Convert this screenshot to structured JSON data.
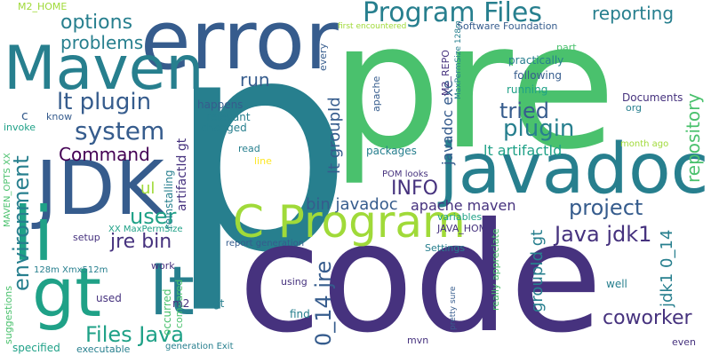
{
  "palette": {
    "background": "#ffffff",
    "colors": [
      "#46327e",
      "#365c8d",
      "#277f8e",
      "#1fa187",
      "#4ac16d",
      "#a0da39",
      "#fde725",
      "#440154"
    ]
  },
  "words": [
    {
      "text": "p",
      "color": "#277f8e"
    },
    {
      "text": "pre",
      "color": "#4ac16d"
    },
    {
      "text": "code",
      "color": "#46327e"
    },
    {
      "text": "error",
      "color": "#365c8d"
    },
    {
      "text": "Maven",
      "color": "#277f8e"
    },
    {
      "text": "JDK",
      "color": "#365c8d"
    },
    {
      "text": "javadoc",
      "color": "#277f8e"
    },
    {
      "text": "li",
      "color": "#1fa187"
    },
    {
      "text": "gt",
      "color": "#1fa187"
    },
    {
      "text": "lt",
      "color": "#277f8e"
    },
    {
      "text": "C Program",
      "color": "#a0da39"
    },
    {
      "text": "Program Files",
      "color": "#277f8e"
    },
    {
      "text": "reporting",
      "color": "#277f8e"
    },
    {
      "text": "options",
      "color": "#277f8e"
    },
    {
      "text": "problems",
      "color": "#277f8e"
    },
    {
      "text": "lt plugin",
      "color": "#365c8d"
    },
    {
      "text": "system",
      "color": "#365c8d"
    },
    {
      "text": "Command",
      "color": "#440154"
    },
    {
      "text": "run",
      "color": "#365c8d"
    },
    {
      "text": "tried",
      "color": "#365c8d"
    },
    {
      "text": "plugin",
      "color": "#277f8e"
    },
    {
      "text": "INFO",
      "color": "#46327e"
    },
    {
      "text": "project",
      "color": "#365c8d"
    },
    {
      "text": "user",
      "color": "#1fa187"
    },
    {
      "text": "jre bin",
      "color": "#46327e"
    },
    {
      "text": "Java jdk1",
      "color": "#46327e"
    },
    {
      "text": "coworker",
      "color": "#46327e"
    },
    {
      "text": "Files Java",
      "color": "#1fa187"
    },
    {
      "text": "environment",
      "color": "#277f8e"
    },
    {
      "text": "0_14 jre",
      "color": "#365c8d"
    },
    {
      "text": "jdk1 0_14",
      "color": "#277f8e"
    },
    {
      "text": "repository",
      "color": "#4ac16d"
    },
    {
      "text": "bin javadoc",
      "color": "#365c8d"
    },
    {
      "text": "apache maven",
      "color": "#46327e"
    },
    {
      "text": "lt groupId",
      "color": "#365c8d"
    },
    {
      "text": "javadoc exe",
      "color": "#365c8d"
    },
    {
      "text": "lt artifactId",
      "color": "#1fa187"
    },
    {
      "text": "groupId gt",
      "color": "#277f8e"
    },
    {
      "text": "artifactId gt",
      "color": "#46327e"
    },
    {
      "text": "ul",
      "color": "#a0da39"
    },
    {
      "text": "practically",
      "color": "#277f8e"
    },
    {
      "text": "following",
      "color": "#365c8d"
    },
    {
      "text": "running",
      "color": "#1fa187"
    },
    {
      "text": "Documents",
      "color": "#46327e"
    },
    {
      "text": "org",
      "color": "#277f8e"
    },
    {
      "text": "happens",
      "color": "#365c8d"
    },
    {
      "text": "relevant",
      "color": "#277f8e"
    },
    {
      "text": "changed",
      "color": "#277f8e"
    },
    {
      "text": "read",
      "color": "#277f8e"
    },
    {
      "text": "line",
      "color": "#fde725"
    },
    {
      "text": "reinstalling",
      "color": "#277f8e"
    },
    {
      "text": "packages",
      "color": "#277f8e"
    },
    {
      "text": "POM looks",
      "color": "#46327e"
    },
    {
      "text": "JAVA_HOME",
      "color": "#46327e"
    },
    {
      "text": "variables",
      "color": "#1fa187"
    },
    {
      "text": "Settings",
      "color": "#277f8e"
    },
    {
      "text": "report generation",
      "color": "#365c8d"
    },
    {
      "text": "XX MaxPermSize",
      "color": "#1fa187"
    },
    {
      "text": "setup",
      "color": "#46327e"
    },
    {
      "text": "work",
      "color": "#46327e"
    },
    {
      "text": "m2",
      "color": "#46327e"
    },
    {
      "text": "gt",
      "color": "#277f8e"
    },
    {
      "text": "used",
      "color": "#46327e"
    },
    {
      "text": "occurred",
      "color": "#4ac16d"
    },
    {
      "text": "compared",
      "color": "#4ac16d"
    },
    {
      "text": "using",
      "color": "#46327e"
    },
    {
      "text": "find",
      "color": "#277f8e"
    },
    {
      "text": "mvn",
      "color": "#46327e"
    },
    {
      "text": "well",
      "color": "#277f8e"
    },
    {
      "text": "even",
      "color": "#46327e"
    },
    {
      "text": "executable",
      "color": "#277f8e"
    },
    {
      "text": "generation Exit",
      "color": "#277f8e"
    },
    {
      "text": "specified",
      "color": "#1fa187"
    },
    {
      "text": "suggestions",
      "color": "#4ac16d"
    },
    {
      "text": "MAVEN_OPTS XX",
      "color": "#4ac16d"
    },
    {
      "text": "128m Xmx512m",
      "color": "#277f8e"
    },
    {
      "text": "invoke",
      "color": "#1fa187"
    },
    {
      "text": "know",
      "color": "#365c8d"
    },
    {
      "text": "c",
      "color": "#365c8d"
    },
    {
      "text": "M2_HOME",
      "color": "#a0da39"
    },
    {
      "text": "first encountered",
      "color": "#a0da39"
    },
    {
      "text": "Software Foundation",
      "color": "#365c8d"
    },
    {
      "text": "M2_REPO",
      "color": "#46327e"
    },
    {
      "text": "MaxPermSize 128m",
      "color": "#277f8e"
    },
    {
      "text": "every",
      "color": "#365c8d"
    },
    {
      "text": "apache",
      "color": "#365c8d"
    },
    {
      "text": "part",
      "color": "#4ac16d"
    },
    {
      "text": "month ago",
      "color": "#a0da39"
    },
    {
      "text": "pretty sure",
      "color": "#365c8d"
    },
    {
      "text": "really appreciate",
      "color": "#4ac16d"
    },
    {
      "text": "BUILD",
      "color": "#365c8d"
    }
  ]
}
